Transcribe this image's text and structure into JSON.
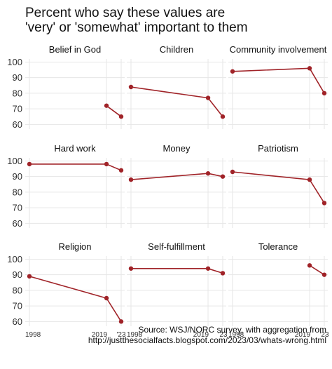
{
  "title_line1": "Percent who say these values are",
  "title_line2": "'very' or 'somewhat' important to them",
  "caption_line1": "Source: WSJ/NORC survey, with aggregation from",
  "caption_line2": "http://justthesocialfacts.blogspot.com/2023/03/whats-wrong.html",
  "colors": {
    "series": "#a02328",
    "grid": "#e6e6e6"
  },
  "chart_data": {
    "type": "line",
    "layout": "facet-3x3",
    "x_ticks": [
      "1998",
      "2019",
      "'23"
    ],
    "x_tick_values": [
      1998,
      2019,
      2023
    ],
    "xlim": [
      1998,
      2023
    ],
    "ylim": [
      57,
      102
    ],
    "y_ticks": [
      60,
      70,
      80,
      90,
      100
    ],
    "grid": true,
    "panels": [
      {
        "name": "Belief in God",
        "x": [
          2019,
          2023
        ],
        "y": [
          72,
          65
        ]
      },
      {
        "name": "Children",
        "x": [
          1998,
          2019,
          2023
        ],
        "y": [
          84,
          77,
          65
        ]
      },
      {
        "name": "Community involvement",
        "x": [
          1998,
          2019,
          2023
        ],
        "y": [
          94,
          96,
          80
        ]
      },
      {
        "name": "Hard work",
        "x": [
          1998,
          2019,
          2023
        ],
        "y": [
          98,
          98,
          94
        ]
      },
      {
        "name": "Money",
        "x": [
          1998,
          2019,
          2023
        ],
        "y": [
          88,
          92,
          90
        ]
      },
      {
        "name": "Patriotism",
        "x": [
          1998,
          2019,
          2023
        ],
        "y": [
          93,
          88,
          73
        ]
      },
      {
        "name": "Religion",
        "x": [
          1998,
          2019,
          2023
        ],
        "y": [
          89,
          75,
          60
        ]
      },
      {
        "name": "Self-fulfillment",
        "x": [
          1998,
          2019,
          2023
        ],
        "y": [
          94,
          94,
          91
        ]
      },
      {
        "name": "Tolerance",
        "x": [
          2019,
          2023
        ],
        "y": [
          96,
          90
        ]
      }
    ]
  }
}
